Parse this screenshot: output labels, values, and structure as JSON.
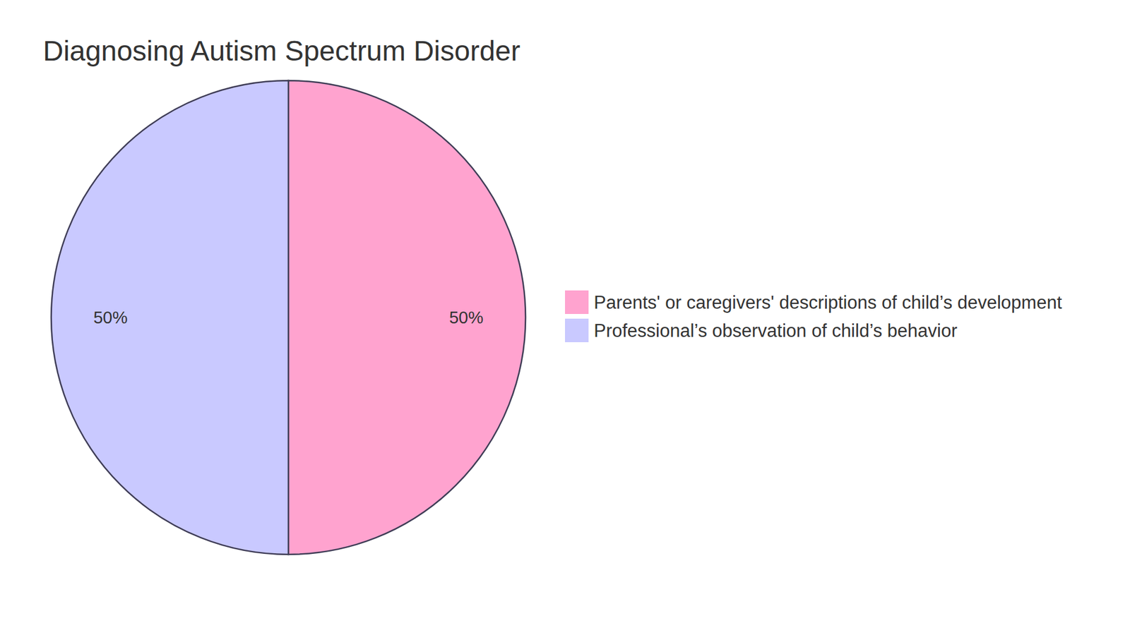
{
  "chart_data": {
    "type": "pie",
    "title": "Diagnosing Autism Spectrum Disorder",
    "categories": [
      "Parents' or caregivers' descriptions of child’s development",
      "Professional’s observation of child’s behavior"
    ],
    "values": [
      50,
      50
    ],
    "value_labels": [
      "50%",
      "50%"
    ],
    "colors": [
      "#ffa3cf",
      "#c9c9ff"
    ],
    "data_labels": true,
    "legend": "right"
  }
}
